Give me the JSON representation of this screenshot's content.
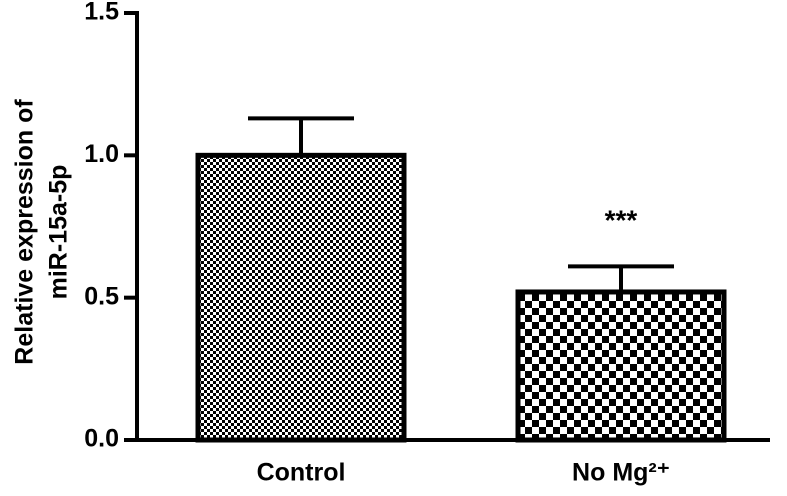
{
  "chart_data": {
    "type": "bar",
    "ylabel": [
      "Relative expression of",
      "miR-15a-5p"
    ],
    "categories": [
      "Control",
      "No Mg²⁺"
    ],
    "values": [
      1.0,
      0.52
    ],
    "errors": [
      0.13,
      0.09
    ],
    "annotation": "***",
    "color": "#000000",
    "ylim": [
      0,
      1.5
    ],
    "yticks": [
      {
        "value": 0,
        "label": "0.0"
      },
      0.5,
      {
        "value": 1,
        "label": "1.0"
      },
      1.5
    ]
  }
}
